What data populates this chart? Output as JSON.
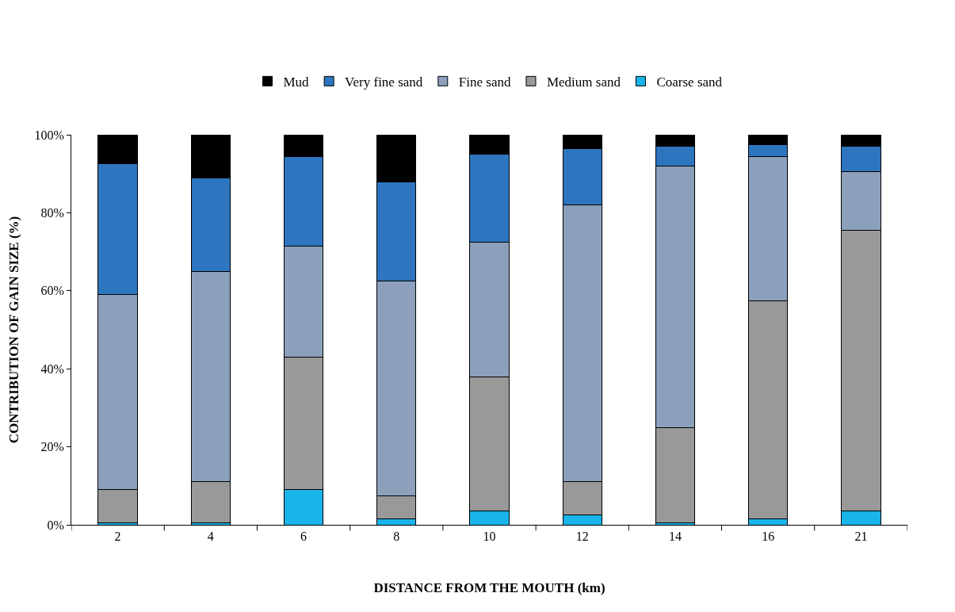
{
  "chart_data": {
    "type": "bar",
    "stacked": true,
    "xlabel": "DISTANCE FROM THE MOUTH (km)",
    "ylabel": "CONTRIBUTION OF GAIN SIZE (%)",
    "categories": [
      "2",
      "4",
      "6",
      "8",
      "10",
      "12",
      "14",
      "16",
      "21"
    ],
    "series": [
      {
        "name": "Coarse sand",
        "color": "#19b4e8",
        "values": [
          0.5,
          0.5,
          9,
          1.5,
          3.5,
          2.5,
          0.5,
          1.5,
          3.5
        ]
      },
      {
        "name": "Medium sand",
        "color": "#999999",
        "values": [
          8.5,
          10.5,
          34,
          6,
          34.5,
          8.5,
          24.5,
          56,
          72
        ]
      },
      {
        "name": "Fine sand",
        "color": "#8ca0bc",
        "values": [
          50,
          54,
          28.5,
          55,
          34.5,
          71,
          67,
          37,
          15
        ]
      },
      {
        "name": "Very fine sand",
        "color": "#2e75c0",
        "values": [
          33.5,
          24,
          23,
          25.5,
          22.5,
          14.5,
          5,
          3,
          6.5
        ]
      },
      {
        "name": "Mud",
        "color": "#000000",
        "values": [
          7.5,
          11,
          5.5,
          12,
          5,
          3.5,
          3,
          2.5,
          3
        ]
      }
    ],
    "ylim": [
      0,
      100
    ],
    "yticks": [
      {
        "value": 0,
        "label": "0%"
      },
      {
        "value": 20,
        "label": "20%"
      },
      {
        "value": 40,
        "label": "40%"
      },
      {
        "value": 60,
        "label": "60%"
      },
      {
        "value": 80,
        "label": "80%"
      },
      {
        "value": 100,
        "label": "100%"
      }
    ],
    "grid": false,
    "legend": "top"
  }
}
